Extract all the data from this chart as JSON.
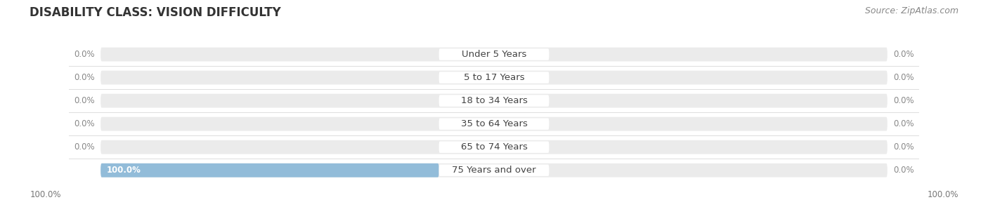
{
  "title": "DISABILITY CLASS: VISION DIFFICULTY",
  "source": "Source: ZipAtlas.com",
  "categories": [
    "Under 5 Years",
    "5 to 17 Years",
    "18 to 34 Years",
    "35 to 64 Years",
    "65 to 74 Years",
    "75 Years and over"
  ],
  "male_values": [
    0.0,
    0.0,
    0.0,
    0.0,
    0.0,
    100.0
  ],
  "female_values": [
    0.0,
    0.0,
    0.0,
    0.0,
    0.0,
    0.0
  ],
  "male_color": "#92bcd9",
  "female_color": "#f4a3b5",
  "bg_bar_color": "#ebebeb",
  "max_value": 100.0,
  "label_color": "#888888",
  "background_color": "#ffffff",
  "title_fontsize": 12,
  "label_fontsize": 8.5,
  "category_fontsize": 9.5,
  "source_fontsize": 9,
  "legend_fontsize": 9.5,
  "bottom_label_color": "#777777"
}
